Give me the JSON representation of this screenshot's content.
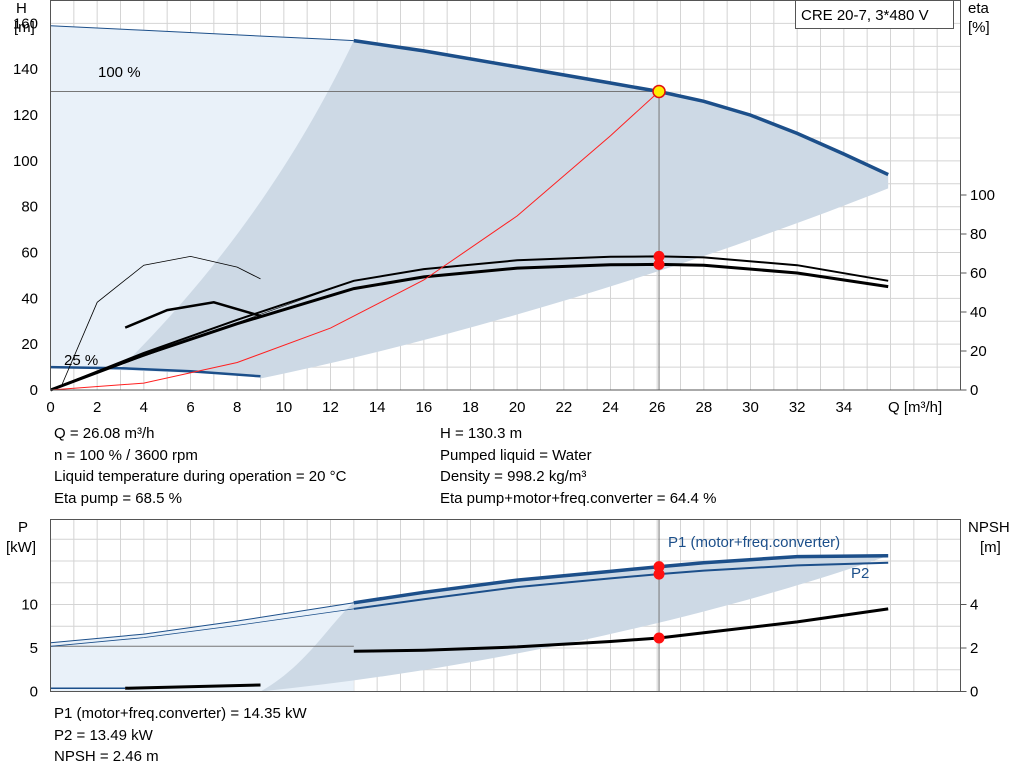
{
  "model_label": "CRE 20-7, 3*480 V",
  "colors": {
    "curve_blue": "#1c4f8a",
    "curve_black": "#000000",
    "system_red": "#ff2020",
    "area_fill": "#cdd9e5",
    "area_light": "#e9f1f9",
    "grid": "#d4d4d4"
  },
  "head_chart": {
    "y_label": "H",
    "y_unit": "[m]",
    "right_label": "eta",
    "right_unit": "[%]",
    "x_label": "Q [m³/h]",
    "label_100": "100 %",
    "label_25": "25 %"
  },
  "power_chart": {
    "y_label": "P",
    "y_unit": "[kW]",
    "right_label": "NPSH",
    "right_unit": "[m]",
    "p1_label": "P1 (motor+freq.converter)",
    "p2_label": "P2"
  },
  "info_top_left": [
    "Q = 26.08 m³/h",
    "n = 100 % / 3600 rpm",
    "Liquid temperature during operation = 20 °C",
    "Eta pump = 68.5 %"
  ],
  "info_top_right": [
    "H = 130.3 m",
    "Pumped liquid = Water",
    "Density = 998.2 kg/m³",
    "Eta pump+motor+freq.converter = 64.4 %"
  ],
  "info_bottom": [
    "P1 (motor+freq.converter) = 14.35 kW",
    "P2 = 13.49 kW",
    "NPSH = 2.46 m"
  ],
  "chart_data": [
    {
      "type": "line",
      "name": "head-efficiency",
      "x_ticks": [
        0,
        2,
        4,
        6,
        8,
        10,
        12,
        14,
        16,
        18,
        20,
        22,
        24,
        26,
        28,
        30,
        32,
        34
      ],
      "xlim": [
        0,
        39
      ],
      "ylim": [
        0,
        170
      ],
      "y_ticks": [
        0,
        20,
        40,
        60,
        80,
        100,
        120,
        140,
        160
      ],
      "right_ticks": [
        0,
        20,
        40,
        60,
        80,
        100
      ],
      "grid": true,
      "duty_point": {
        "q": 26.08,
        "h": 130.3,
        "eta_pump": 68.5,
        "eta_total": 64.4
      },
      "series": [
        {
          "x": [
            0,
            4,
            8,
            12,
            13
          ],
          "y": [
            159,
            157,
            155,
            153,
            152.5
          ]
        },
        {
          "x": [
            13,
            16,
            20,
            24,
            26.08,
            28,
            30,
            32,
            34,
            35.9
          ],
          "y": [
            152.5,
            148,
            141,
            134,
            130.3,
            126,
            120,
            112,
            103,
            94
          ]
        },
        {
          "x": [
            0,
            3,
            6,
            9
          ],
          "y": [
            10,
            9.5,
            8.2,
            6
          ]
        },
        {
          "x": [
            0,
            4,
            8,
            13,
            16,
            20,
            24,
            26.08,
            28,
            32,
            35.9
          ],
          "y": [
            0,
            19,
            36,
            56,
            62,
            66.5,
            68.3,
            68.5,
            68,
            64,
            56
          ]
        },
        {
          "x": [
            0,
            4,
            8,
            13,
            16,
            20,
            24,
            26.08,
            28,
            32,
            35.9
          ],
          "y": [
            0,
            18,
            34,
            52,
            58,
            62.5,
            64.2,
            64.4,
            64,
            60,
            53
          ]
        },
        {
          "x": [
            0.5,
            2,
            4,
            6,
            8,
            9
          ],
          "y": [
            3,
            45,
            64,
            68.5,
            63,
            57
          ]
        },
        {
          "x": [
            3.2,
            5,
            7,
            9
          ],
          "y": [
            32,
            41,
            45,
            38
          ]
        },
        {
          "x": [
            0,
            4,
            8,
            12,
            16,
            20,
            24,
            26.08
          ],
          "y": [
            0,
            3,
            12,
            27,
            48,
            76,
            111,
            130.3
          ]
        }
      ]
    },
    {
      "type": "line",
      "name": "power-npsh",
      "x_ticks": [
        0,
        2,
        4,
        6,
        8,
        10,
        12,
        14,
        16,
        18,
        20,
        22,
        24,
        26,
        28,
        30,
        32,
        34
      ],
      "xlim": [
        0,
        39
      ],
      "ylim": [
        0,
        17
      ],
      "y_ticks": [
        0,
        5,
        10
      ],
      "right_ticks": [
        0,
        2,
        4
      ],
      "grid": true,
      "duty_point": {
        "q": 26.08,
        "p1": 14.35,
        "p2": 13.49,
        "npsh": 2.46
      },
      "series": [
        {
          "name": "P1 (motor+freq.converter)",
          "x": [
            0,
            4,
            8,
            13,
            16,
            20,
            24,
            26.08,
            28,
            32,
            35.9
          ],
          "y": [
            5.6,
            6.6,
            8.1,
            10.2,
            11.4,
            12.8,
            13.8,
            14.35,
            14.8,
            15.5,
            15.6
          ]
        },
        {
          "name": "P2",
          "x": [
            0,
            4,
            8,
            13,
            16,
            20,
            24,
            26.08,
            28,
            32,
            35.9
          ],
          "y": [
            5.2,
            6.2,
            7.6,
            9.5,
            10.6,
            12.0,
            13.0,
            13.49,
            13.9,
            14.5,
            14.8
          ]
        },
        {
          "x": [
            0,
            4,
            8,
            13,
            16,
            20,
            24,
            26.08,
            28,
            32,
            35.9
          ],
          "y": [
            0.15,
            0.2,
            0.3,
            1.85,
            1.9,
            2.05,
            2.3,
            2.46,
            2.7,
            3.2,
            3.8
          ]
        }
      ]
    }
  ]
}
